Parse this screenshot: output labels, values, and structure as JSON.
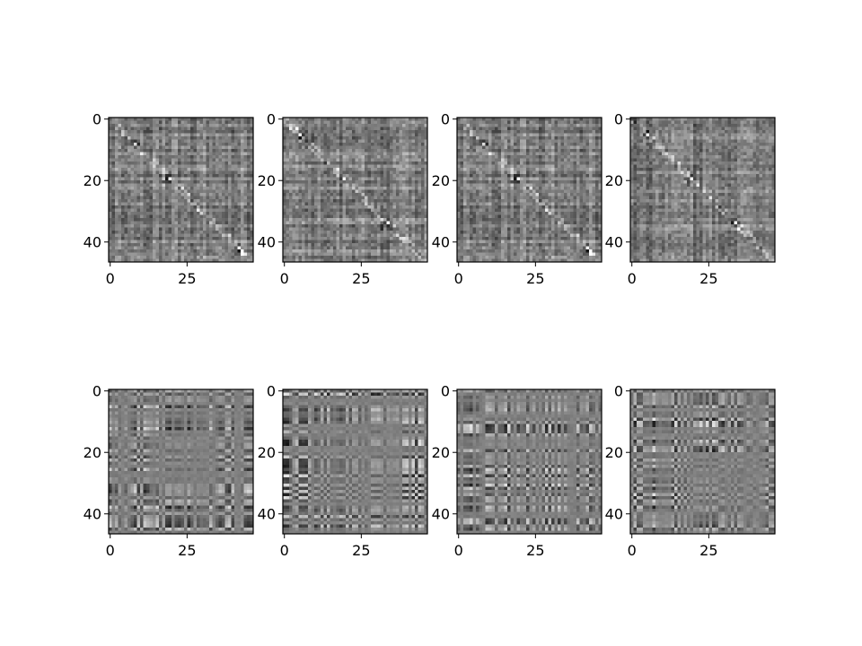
{
  "chart_data": {
    "type": "heatmap",
    "layout": {
      "rows": 2,
      "cols": 4
    },
    "colormap": "gray",
    "grid": false,
    "legend": "none",
    "panels": [
      {
        "row": 0,
        "col": 0,
        "pattern": "diagonal",
        "seed": 11,
        "hotspots": [
          8,
          19,
          41
        ],
        "xlim": [
          -0.5,
          46.5
        ],
        "ylim": [
          46.5,
          -0.5
        ],
        "xticks": [
          0,
          25
        ],
        "yticks": [
          0,
          20,
          40
        ],
        "xtick_labels": [
          "0",
          "25"
        ],
        "ytick_labels": [
          "0",
          "20",
          "40"
        ]
      },
      {
        "row": 0,
        "col": 1,
        "pattern": "diagonal",
        "seed": 23,
        "hotspots": [
          5,
          19,
          33
        ],
        "xlim": [
          -0.5,
          46.5
        ],
        "ylim": [
          46.5,
          -0.5
        ],
        "xticks": [
          0,
          25
        ],
        "yticks": [
          0,
          20,
          40
        ],
        "xtick_labels": [
          "0",
          "25"
        ],
        "ytick_labels": [
          "0",
          "20",
          "40"
        ]
      },
      {
        "row": 0,
        "col": 2,
        "pattern": "diagonal",
        "seed": 11,
        "hotspots": [
          8,
          19,
          41
        ],
        "xlim": [
          -0.5,
          46.5
        ],
        "ylim": [
          46.5,
          -0.5
        ],
        "xticks": [
          0,
          25
        ],
        "yticks": [
          0,
          20,
          40
        ],
        "xtick_labels": [
          "0",
          "25"
        ],
        "ytick_labels": [
          "0",
          "20",
          "40"
        ]
      },
      {
        "row": 0,
        "col": 3,
        "pattern": "diagonal",
        "seed": 37,
        "hotspots": [
          5,
          19,
          33
        ],
        "xlim": [
          -0.5,
          46.5
        ],
        "ylim": [
          46.5,
          -0.5
        ],
        "xticks": [
          0,
          25
        ],
        "yticks": [
          0,
          20,
          40
        ],
        "xtick_labels": [
          "0",
          "25"
        ],
        "ytick_labels": [
          "0",
          "20",
          "40"
        ]
      },
      {
        "row": 1,
        "col": 0,
        "pattern": "outer",
        "seed": 51,
        "blocks": [
          13,
          33
        ],
        "xlim": [
          -0.5,
          46.5
        ],
        "ylim": [
          46.5,
          -0.5
        ],
        "xticks": [
          0,
          25
        ],
        "yticks": [
          0,
          20,
          40
        ],
        "xtick_labels": [
          "0",
          "25"
        ],
        "ytick_labels": [
          "0",
          "20",
          "40"
        ]
      },
      {
        "row": 1,
        "col": 1,
        "pattern": "outer",
        "seed": 63,
        "blocks": [
          10,
          38
        ],
        "xlim": [
          -0.5,
          46.5
        ],
        "ylim": [
          46.5,
          -0.5
        ],
        "xticks": [
          0,
          25
        ],
        "yticks": [
          0,
          20,
          40
        ],
        "xtick_labels": [
          "0",
          "25"
        ],
        "ytick_labels": [
          "0",
          "20",
          "40"
        ]
      },
      {
        "row": 1,
        "col": 2,
        "pattern": "outer",
        "seed": 77,
        "blocks": [
          35,
          41
        ],
        "xlim": [
          -0.5,
          46.5
        ],
        "ylim": [
          46.5,
          -0.5
        ],
        "xticks": [
          0,
          25
        ],
        "yticks": [
          0,
          20,
          40
        ],
        "xtick_labels": [
          "0",
          "25"
        ],
        "ytick_labels": [
          "0",
          "20",
          "40"
        ]
      },
      {
        "row": 1,
        "col": 3,
        "pattern": "outer",
        "seed": 89,
        "blocks": [
          20,
          38
        ],
        "xlim": [
          -0.5,
          46.5
        ],
        "ylim": [
          46.5,
          -0.5
        ],
        "xticks": [
          0,
          25
        ],
        "yticks": [
          0,
          20,
          40
        ],
        "xtick_labels": [
          "0",
          "25"
        ],
        "ytick_labels": [
          "0",
          "20",
          "40"
        ]
      }
    ]
  }
}
